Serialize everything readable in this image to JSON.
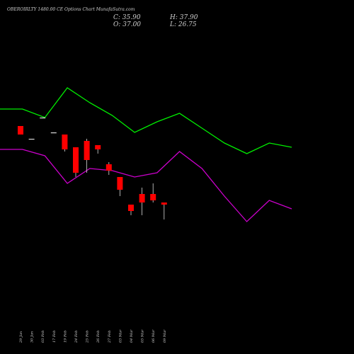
{
  "chart_data": {
    "type": "candlestick",
    "title": "OBEROIRLTY 1480.00 CE Options  Chart MunafaSutra.com",
    "ohlc": {
      "c_label": "C: 35.90",
      "o_label": "O: 37.00",
      "h_label": "H: 37.90",
      "l_label": "L: 26.75"
    },
    "categories": [
      "29 Jan",
      "30 Jan",
      "03 Feb",
      "17 Feb",
      "19 Feb",
      "24 Feb",
      "25 Feb",
      "26 Feb",
      "27 Feb",
      "03 Mar",
      "04 Mar",
      "05 Mar",
      "06 Mar",
      "09 Mar"
    ],
    "candles": [
      {
        "date": "29 Jan",
        "open": 84,
        "high": 84,
        "low": 80,
        "close": 80
      },
      {
        "date": "30 Jan",
        "open": 78,
        "high": 78,
        "low": 78,
        "close": 78
      },
      {
        "date": "03 Feb",
        "open": 88,
        "high": 88,
        "low": 88,
        "close": 88
      },
      {
        "date": "17 Feb",
        "open": 81,
        "high": 81,
        "low": 81,
        "close": 81
      },
      {
        "date": "19 Feb",
        "open": 80,
        "high": 80,
        "low": 72,
        "close": 73
      },
      {
        "date": "24 Feb",
        "open": 74,
        "high": 74,
        "low": 60,
        "close": 62
      },
      {
        "date": "25 Feb",
        "open": 77,
        "high": 78,
        "low": 62,
        "close": 68
      },
      {
        "date": "26 Feb",
        "open": 75,
        "high": 75,
        "low": 71,
        "close": 73
      },
      {
        "date": "27 Feb",
        "open": 66,
        "high": 67,
        "low": 61,
        "close": 63
      },
      {
        "date": "03 Mar",
        "open": 60,
        "high": 60,
        "low": 51,
        "close": 54
      },
      {
        "date": "04 Mar",
        "open": 47,
        "high": 47,
        "low": 42,
        "close": 44
      },
      {
        "date": "05 Mar",
        "open": 52,
        "high": 55,
        "low": 42,
        "close": 48
      },
      {
        "date": "06 Mar",
        "open": 52,
        "high": 57,
        "low": 48,
        "close": 49
      },
      {
        "date": "09 Mar",
        "open": 48,
        "high": 48,
        "low": 40,
        "close": 47
      }
    ],
    "series": [
      {
        "color": "#00ee00",
        "points": [
          {
            "date": "29 Jan",
            "y": 92
          },
          {
            "date": "30 Jan",
            "y": 92
          },
          {
            "date": "03 Feb",
            "y": 88
          },
          {
            "date": "17 Feb",
            "y": 102
          },
          {
            "date": "19 Feb",
            "y": 95
          },
          {
            "date": "24 Feb",
            "y": 89
          },
          {
            "date": "25 Feb",
            "y": 81
          },
          {
            "date": "26 Feb",
            "y": 86
          },
          {
            "date": "27 Feb",
            "y": 90
          },
          {
            "date": "03 Mar",
            "y": 83
          },
          {
            "date": "04 Mar",
            "y": 76
          },
          {
            "date": "05 Mar",
            "y": 71
          },
          {
            "date": "06 Mar",
            "y": 76
          },
          {
            "date": "09 Mar",
            "y": 74
          }
        ]
      },
      {
        "color": "#cc00cc",
        "points": [
          {
            "date": "29 Jan",
            "y": 73
          },
          {
            "date": "30 Jan",
            "y": 73
          },
          {
            "date": "03 Feb",
            "y": 70
          },
          {
            "date": "17 Feb",
            "y": 57
          },
          {
            "date": "19 Feb",
            "y": 64
          },
          {
            "date": "24 Feb",
            "y": 63
          },
          {
            "date": "25 Feb",
            "y": 60
          },
          {
            "date": "26 Feb",
            "y": 62
          },
          {
            "date": "27 Feb",
            "y": 72
          },
          {
            "date": "03 Mar",
            "y": 64
          },
          {
            "date": "04 Mar",
            "y": 51
          },
          {
            "date": "05 Mar",
            "y": 39
          },
          {
            "date": "06 Mar",
            "y": 49
          },
          {
            "date": "09 Mar",
            "y": 45
          }
        ]
      }
    ],
    "colors": {
      "background": "#000000",
      "up": "#00ee00",
      "down": "#ff0000",
      "text": "#cfcfcf"
    },
    "ylim": [
      0,
      140
    ],
    "grid": false
  }
}
